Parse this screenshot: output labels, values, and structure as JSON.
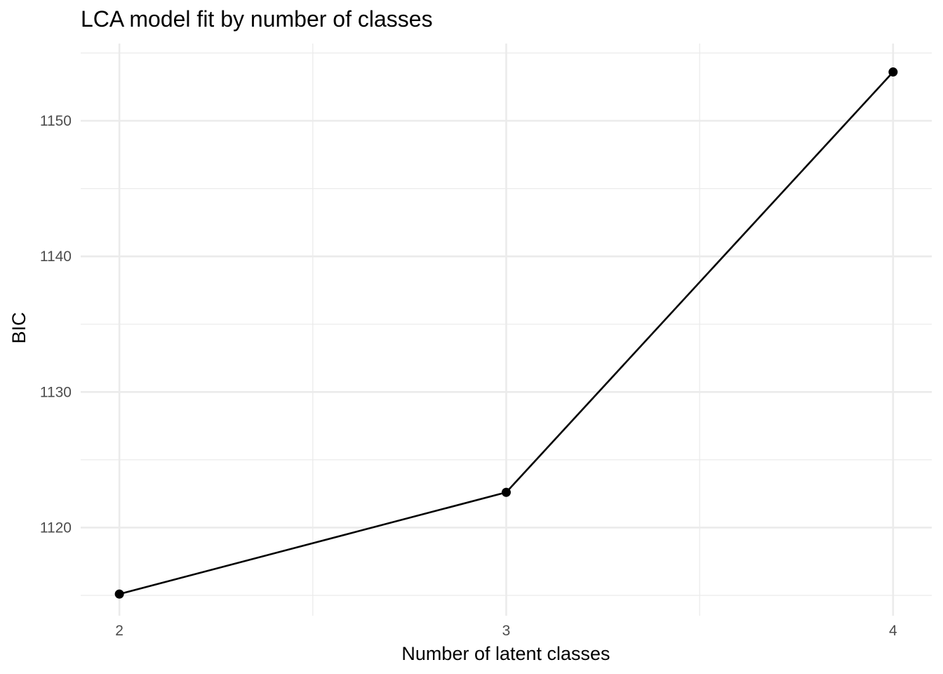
{
  "chart_data": {
    "type": "line",
    "title": "LCA model fit by number of classes",
    "xlabel": "Number of latent classes",
    "ylabel": "BIC",
    "x": [
      2,
      3,
      4
    ],
    "y": [
      1115.1,
      1122.6,
      1153.6
    ],
    "xlim": [
      1.9,
      4.1
    ],
    "ylim": [
      1113.5,
      1155.7
    ],
    "x_ticks": [
      2,
      3,
      4
    ],
    "x_tick_labels": [
      "2",
      "3",
      "4"
    ],
    "y_ticks": [
      1120,
      1130,
      1140,
      1150
    ],
    "y_tick_labels": [
      "1120",
      "1130",
      "1140",
      "1150"
    ],
    "grid": true,
    "colors": {
      "series": "#000000",
      "grid": "#ebebeb",
      "tick_text": "#4d4d4d"
    }
  }
}
